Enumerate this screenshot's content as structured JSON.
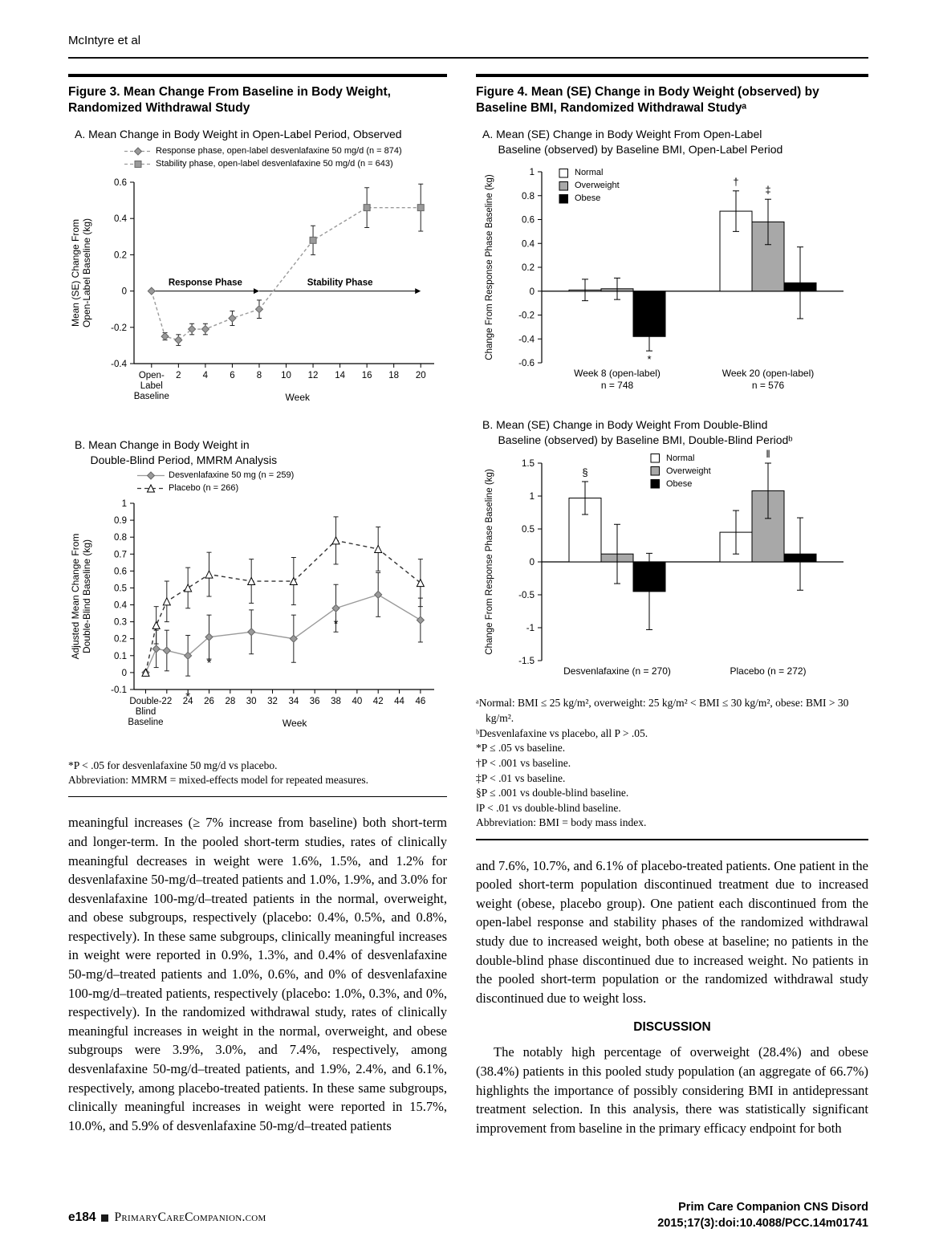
{
  "header": {
    "running_head": "McIntyre et al"
  },
  "figure3": {
    "title": "Figure 3. Mean Change From Baseline in Body Weight,\nRandomized Withdrawal Study",
    "panelA": {
      "title": "A. Mean Change in Body Weight in Open-Label Period, Observed",
      "chart_data": {
        "type": "line",
        "ylabel": "Mean (SE) Change From\nOpen-Label Baseline (kg)",
        "xlabel": "Week",
        "ylim": [
          -0.4,
          0.6
        ],
        "yticks": [
          0.6,
          0.4,
          0.2,
          0,
          -0.2,
          -0.4
        ],
        "xlim": [
          -1.3,
          21
        ],
        "xticks": [
          {
            "x": 0,
            "label": "Open-\nLabel\nBaseline"
          },
          {
            "x": 2,
            "label": "2"
          },
          {
            "x": 4,
            "label": "4"
          },
          {
            "x": 6,
            "label": "6"
          },
          {
            "x": 8,
            "label": "8"
          },
          {
            "x": 10,
            "label": "10"
          },
          {
            "x": 12,
            "label": "12"
          },
          {
            "x": 14,
            "label": "14"
          },
          {
            "x": 16,
            "label": "16"
          },
          {
            "x": 18,
            "label": "18"
          },
          {
            "x": 20,
            "label": "20"
          }
        ],
        "series": [
          {
            "name": "Response phase, open-label desvenlafaxine 50 mg/d (n = 874)",
            "marker": "diamond",
            "color": "#9a9a9a",
            "dash": "4 3",
            "x": [
              0,
              1,
              2,
              3,
              4,
              6,
              8
            ],
            "y": [
              0,
              -0.25,
              -0.27,
              -0.21,
              -0.21,
              -0.15,
              -0.1
            ],
            "err": [
              0,
              0.02,
              0.03,
              0.03,
              0.03,
              0.04,
              0.05
            ]
          },
          {
            "name": "Stability phase, open-label desvenlafaxine 50 mg/d (n = 643)",
            "marker": "square",
            "color": "#9a9a9a",
            "dash": "4 3",
            "x": [
              8,
              12,
              16,
              20
            ],
            "y": [
              -0.1,
              0.28,
              0.46,
              0.46
            ],
            "err": [
              null,
              0.08,
              0.11,
              0.13
            ]
          }
        ],
        "phases": [
          {
            "label": "Response Phase",
            "x1": 0,
            "x2": 8,
            "y": 0
          },
          {
            "label": "Stability Phase",
            "x1": 8,
            "x2": 20,
            "y": 0
          }
        ],
        "legend_position": "top-left",
        "grid": false
      }
    },
    "panelB": {
      "title": "B. Mean Change in Body Weight in\n     Double-Blind Period, MMRM Analysis",
      "chart_data": {
        "type": "line",
        "ylabel": "Adjusted Mean Change From\nDouble-Blind Baseline (kg)",
        "xlabel": "Week",
        "ylim": [
          -0.1,
          1
        ],
        "yticks": [
          1,
          0.9,
          0.8,
          0.7,
          0.6,
          0.5,
          0.4,
          0.3,
          0.2,
          0.1,
          0,
          -0.1
        ],
        "xlim": [
          18.9,
          47.3
        ],
        "xticks": [
          {
            "x": 20,
            "label": "Double-\nBlind\nBaseline"
          },
          {
            "x": 22,
            "label": "22"
          },
          {
            "x": 24,
            "label": "24"
          },
          {
            "x": 26,
            "label": "26"
          },
          {
            "x": 28,
            "label": "28"
          },
          {
            "x": 30,
            "label": "30"
          },
          {
            "x": 32,
            "label": "32"
          },
          {
            "x": 34,
            "label": "34"
          },
          {
            "x": 36,
            "label": "36"
          },
          {
            "x": 38,
            "label": "38"
          },
          {
            "x": 40,
            "label": "40"
          },
          {
            "x": 42,
            "label": "42"
          },
          {
            "x": 44,
            "label": "44"
          },
          {
            "x": 46,
            "label": "46"
          }
        ],
        "series": [
          {
            "name": "Desvenlafaxine 50 mg (n = 259)",
            "marker": "diamond",
            "color": "#9a9a9a",
            "x": [
              20,
              21,
              22,
              24,
              26,
              30,
              34,
              38,
              42,
              46
            ],
            "y": [
              0,
              0.14,
              0.13,
              0.1,
              0.21,
              0.24,
              0.2,
              0.38,
              0.46,
              0.31
            ],
            "err": [
              0,
              0.11,
              0.12,
              0.12,
              0.13,
              0.13,
              0.14,
              0.14,
              0.13,
              0.13
            ]
          },
          {
            "name": "Placebo (n = 266)",
            "marker": "triangle",
            "color": "#333333",
            "dash": "5 4",
            "mfill": "#ffffff",
            "mstroke": "#000000",
            "x": [
              20,
              21,
              22,
              24,
              26,
              30,
              34,
              38,
              42,
              46
            ],
            "y": [
              0,
              0.28,
              0.42,
              0.5,
              0.58,
              0.54,
              0.54,
              0.78,
              0.73,
              0.53
            ],
            "err": [
              0,
              0.11,
              0.12,
              0.12,
              0.13,
              0.13,
              0.14,
              0.14,
              0.13,
              0.14
            ]
          }
        ],
        "annotations": [
          {
            "x": 24,
            "y": -0.165,
            "text": "*"
          },
          {
            "x": 26,
            "y": 0.035,
            "text": "*"
          },
          {
            "x": 38,
            "y": 0.265,
            "text": "*"
          }
        ],
        "legend_position": "top-left",
        "grid": false
      }
    },
    "footnotes": [
      "*P < .05 for desvenlafaxine 50 mg/d vs placebo.",
      "Abbreviation: MMRM = mixed-effects model for repeated measures."
    ]
  },
  "figure4": {
    "title": "Figure 4. Mean (SE) Change in Body Weight (observed) by\nBaseline BMI, Randomized Withdrawal Studyᵃ",
    "panelA": {
      "title": "A. Mean (SE) Change in Body Weight From Open-Label\n     Baseline (observed) by Baseline BMI, Open-Label Period",
      "chart_data": {
        "type": "bar",
        "ylabel": "Change From Response Phase Baseline (kg)",
        "ylim": [
          -0.6,
          1
        ],
        "yticks": [
          1,
          0.8,
          0.6,
          0.4,
          0.2,
          0,
          -0.2,
          -0.4,
          -0.6
        ],
        "groups": [
          {
            "label": "Week 8 (open-label)",
            "sublabel": "n = 748"
          },
          {
            "label": "Week 20 (open-label)",
            "sublabel": "n = 576"
          }
        ],
        "series": [
          {
            "name": "Normal",
            "color": "#ffffff",
            "values": [
              0.01,
              0.67
            ],
            "err": [
              0.09,
              0.17
            ]
          },
          {
            "name": "Overweight",
            "color": "#a8a8a8",
            "values": [
              0.02,
              0.58
            ],
            "err": [
              0.09,
              0.19
            ]
          },
          {
            "name": "Obese",
            "color": "#000000",
            "values": [
              -0.38,
              0.07
            ],
            "err": [
              0.12,
              0.3
            ]
          }
        ],
        "sig": [
          {
            "group": 0,
            "series": 2,
            "symbol": "*",
            "pos": "below"
          },
          {
            "group": 1,
            "series": 0,
            "symbol": "†",
            "pos": "above"
          },
          {
            "group": 1,
            "series": 1,
            "symbol": "‡",
            "pos": "above"
          }
        ],
        "legend_position": "top-left",
        "grid": false
      }
    },
    "panelB": {
      "title": "B. Mean (SE) Change in Body Weight From Double-Blind\n     Baseline (observed) by Baseline BMI, Double-Blind Periodᵇ",
      "chart_data": {
        "type": "bar",
        "ylabel": "Change From Response Phase Baseline (kg)",
        "ylim": [
          -1.5,
          1.5
        ],
        "yticks": [
          1.5,
          1,
          0.5,
          0,
          -0.5,
          -1,
          -1.5
        ],
        "groups": [
          {
            "label": "Desvenlafaxine (n = 270)"
          },
          {
            "label": "Placebo (n = 272)"
          }
        ],
        "series": [
          {
            "name": "Normal",
            "color": "#ffffff",
            "values": [
              0.97,
              0.45
            ],
            "err": [
              0.25,
              0.33
            ]
          },
          {
            "name": "Overweight",
            "color": "#a8a8a8",
            "values": [
              0.12,
              1.08
            ],
            "err": [
              0.45,
              0.42
            ]
          },
          {
            "name": "Obese",
            "color": "#000000",
            "values": [
              -0.45,
              0.12
            ],
            "err": [
              0.58,
              0.55
            ]
          }
        ],
        "sig": [
          {
            "group": 0,
            "series": 0,
            "symbol": "§",
            "pos": "above"
          },
          {
            "group": 1,
            "series": 1,
            "symbol": "‖",
            "pos": "above"
          }
        ],
        "legend_position": "top-center",
        "grid": false
      }
    },
    "footnotes": [
      "ᵃNormal: BMI ≤ 25 kg/m², overweight: 25 kg/m² < BMI ≤ 30 kg/m², obese: BMI > 30 kg/m².",
      "ᵇDesvenlafaxine vs placebo, all P > .05.",
      "*P ≤ .05 vs baseline.",
      "†P < .001 vs baseline.",
      "‡P < .01 vs baseline.",
      "§P ≤ .001 vs double-blind baseline.",
      "‖P < .01 vs double-blind baseline.",
      "Abbreviation: BMI = body mass index."
    ]
  },
  "body": {
    "left_paragraphs": [
      "meaningful increases (≥ 7% increase from baseline) both short-term and longer-term. In the pooled short-term studies, rates of clinically meaningful decreases in weight were 1.6%, 1.5%, and 1.2% for desvenlafaxine 50-mg/d–treated patients and 1.0%, 1.9%, and 3.0% for desvenlafaxine 100-mg/d–treated patients in the normal, overweight, and obese subgroups, respectively (placebo: 0.4%, 0.5%, and 0.8%, respectively). In these same subgroups, clinically meaningful increases in weight were reported in 0.9%, 1.3%, and 0.4% of desvenlafaxine 50-mg/d–treated patients and 1.0%, 0.6%, and 0% of desvenlafaxine 100-mg/d–treated patients, respectively (placebo: 1.0%, 0.3%, and 0%, respectively). In the randomized withdrawal study, rates of clinically meaningful increases in weight in the normal, overweight, and obese subgroups were 3.9%, 3.0%, and 7.4%, respectively, among desvenlafaxine 50-mg/d–treated patients, and 1.9%, 2.4%, and 6.1%, respectively, among placebo-treated patients. In these same subgroups, clinically meaningful increases in weight were reported in 15.7%, 10.0%, and 5.9% of desvenlafaxine 50-mg/d–treated patients"
    ],
    "right_paragraphs": [
      "and 7.6%, 10.7%, and 6.1% of placebo-treated patients. One patient in the pooled short-term population discontinued treatment due to increased weight (obese, placebo group). One patient each discontinued from the open-label response and stability phases of the randomized withdrawal study due to increased weight, both obese at baseline; no patients in the double-blind phase discontinued due to increased weight. No patients in the pooled short-term population or the randomized withdrawal study discontinued due to weight loss."
    ],
    "discussion_heading": "DISCUSSION",
    "discussion_paragraphs": [
      "The notably high percentage of overweight (28.4%) and obese (38.4%) patients in this pooled study population (an aggregate of 66.7%) highlights the importance of possibly considering BMI in antidepressant treatment selection. In this analysis, there was statistically significant improvement from baseline in the primary efficacy endpoint for both"
    ]
  },
  "footer": {
    "page_number": "e184",
    "site": "PrimaryCareCompanion.com",
    "journal_line1": "Prim Care Companion CNS Disord",
    "journal_line2": "2015;17(3):doi:10.4088/PCC.14m01741"
  }
}
